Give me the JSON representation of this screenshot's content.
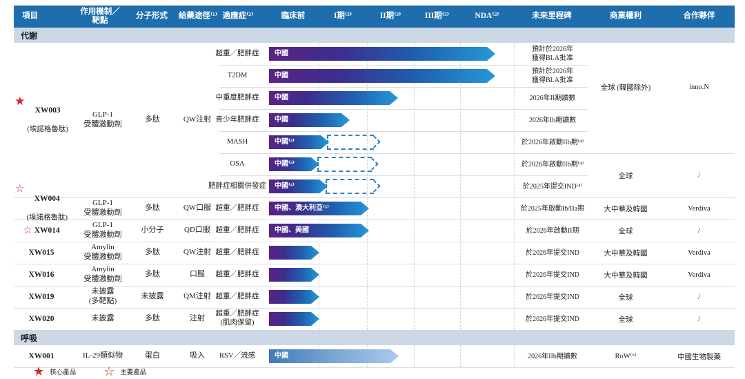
{
  "colors": {
    "header_bg": "#1e6dad",
    "section_band_bg": "#ccd8e6",
    "bar_gradient_start": "#5a2383",
    "bar_gradient_end": "#2598d8",
    "bar_light_start": "#3f7cba",
    "bar_light_end": "#aacaec",
    "dashed_outline": "#2f7fc1",
    "star_red": "#d6281e"
  },
  "stars": {
    "filled": "★",
    "outline": "☆"
  },
  "header": {
    "project": "項目",
    "mechanism": "作用機制／\n靶點",
    "molecule": "分子形式",
    "route": "給藥途徑⁽¹⁾",
    "indication": "適應症⁽²⁾",
    "preclinical": "臨床前",
    "phase1": "I期⁽³⁾",
    "phase2": "II期⁽³⁾",
    "phase3": "III期⁽³⁾",
    "nda": "NDA⁽²⁾",
    "milestone": "未來里程碑",
    "rights": "商業權利",
    "partner": "合作夥伴"
  },
  "sections": {
    "metabolic": "代謝",
    "respiratory": "呼吸"
  },
  "products": [
    {
      "code": "XW003",
      "note": "(埃諾格魯肽)",
      "mechanism": "GLP-1\n受體激動劑",
      "molecule": "多肽",
      "route": "QW注射",
      "rights_a": "全球 (韓國除外)",
      "partner_a": "inno.N",
      "rights_b": "全球",
      "partner_b": "/"
    },
    {
      "code": "XW004",
      "note": "(埃諾格魯肽)",
      "mechanism": "GLP-1\n受體激動劑",
      "molecule": "多肽",
      "route": "QW口服"
    },
    {
      "code": "XW014",
      "mechanism": "GLP-1\n受體激動劑",
      "molecule": "小分子",
      "route": "QD口服"
    },
    {
      "code": "XW015",
      "mechanism": "Amylin\n受體激動劑",
      "molecule": "多肽",
      "route": "QW注射"
    },
    {
      "code": "XW016",
      "mechanism": "Amylin\n受體激動劑",
      "molecule": "多肽",
      "route": "口服"
    },
    {
      "code": "XW019",
      "mechanism": "未披露\n(多靶點)",
      "molecule": "未披露",
      "route": "QM注射"
    },
    {
      "code": "XW020",
      "mechanism": "未披露",
      "molecule": "多肽",
      "route": "注射"
    },
    {
      "code": "XW001",
      "mechanism": "IL-29類似物",
      "molecule": "蛋白",
      "route": "吸入"
    }
  ],
  "rows": [
    {
      "indication": "超重／肥胖症",
      "bar_label": "中國",
      "milestone": "預計於2026年\n獲得BLA批准",
      "bar": {
        "start": 390,
        "end": 718
      }
    },
    {
      "indication": "T2DM",
      "bar_label": "中國",
      "milestone": "預計於2026年\n獲得BLA批准",
      "bar": {
        "start": 390,
        "end": 718
      }
    },
    {
      "indication": "中重度肥胖症",
      "bar_label": "中國",
      "milestone": "2026年II期讀數",
      "bar": {
        "start": 390,
        "end": 577
      }
    },
    {
      "indication": "青少年肥胖症",
      "bar_label": "中國",
      "milestone": "2026年Ib期讀數",
      "bar": {
        "start": 390,
        "end": 507
      }
    },
    {
      "indication": "MASH",
      "bar_label": "中國⁽⁴⁾",
      "milestone": "於2026年啟動IIb期⁽⁴⁾",
      "bar": {
        "start": 390,
        "end": 477
      },
      "dash": {
        "start": 474,
        "end": 548
      }
    },
    {
      "indication": "OSA",
      "bar_label": "中國⁽⁴⁾",
      "milestone": "於2026年啟動IIb期⁽⁴⁾",
      "bar": {
        "start": 390,
        "end": 463
      },
      "dash": {
        "start": 460,
        "end": 545
      }
    },
    {
      "indication": "肥胖症相關併發症",
      "bar_label": "中國⁽⁴⁾",
      "milestone": "於2025年提交IND⁽⁴⁾",
      "bar": {
        "start": 390,
        "end": 475
      },
      "dash": {
        "start": 472,
        "end": 548
      }
    },
    {
      "indication": "超重／肥胖症",
      "bar_label": "中國、澳大利亞⁽⁵⁾",
      "milestone": "於2025年啟動Ib/IIa期",
      "rights": "大中華及韓國",
      "partner": "Verdiva",
      "bar": {
        "start": 390,
        "end": 535
      }
    },
    {
      "indication": "超重／肥胖症",
      "bar_label": "中國、美國",
      "milestone": "於2026年啟動II期",
      "rights": "全球",
      "partner": "/",
      "bar": {
        "start": 390,
        "end": 535
      }
    },
    {
      "indication": "超重／肥胖症",
      "bar_label": "",
      "milestone": "於2026年提交IND",
      "rights": "大中華及韓國",
      "partner": "Verdiva",
      "bar": {
        "start": 390,
        "end": 463
      }
    },
    {
      "indication": "超重／肥胖症",
      "bar_label": "",
      "milestone": "於2026年提交IND",
      "rights": "大中華及韓國",
      "partner": "Verdiva",
      "bar": {
        "start": 390,
        "end": 463
      }
    },
    {
      "indication": "超重／肥胖症",
      "bar_label": "",
      "milestone": "於2026年提交IND",
      "rights": "全球",
      "partner": "/",
      "bar": {
        "start": 390,
        "end": 463
      }
    },
    {
      "indication": "超重／肥胖症\n(肌肉保留)",
      "bar_label": "",
      "milestone": "於2026年提交IND",
      "rights": "全球",
      "partner": "/",
      "bar": {
        "start": 390,
        "end": 463
      }
    },
    {
      "indication": "RSV／流感",
      "bar_label": "中國",
      "milestone": "2026年IIb期讀數",
      "rights": "RoW⁽⁶⁾",
      "partner": "中國生物製藥",
      "bar": {
        "start": 390,
        "end": 578
      }
    }
  ],
  "legend": [
    {
      "icon": "★",
      "label": "核心產品"
    },
    {
      "icon": "☆",
      "label": "主要產品"
    }
  ]
}
